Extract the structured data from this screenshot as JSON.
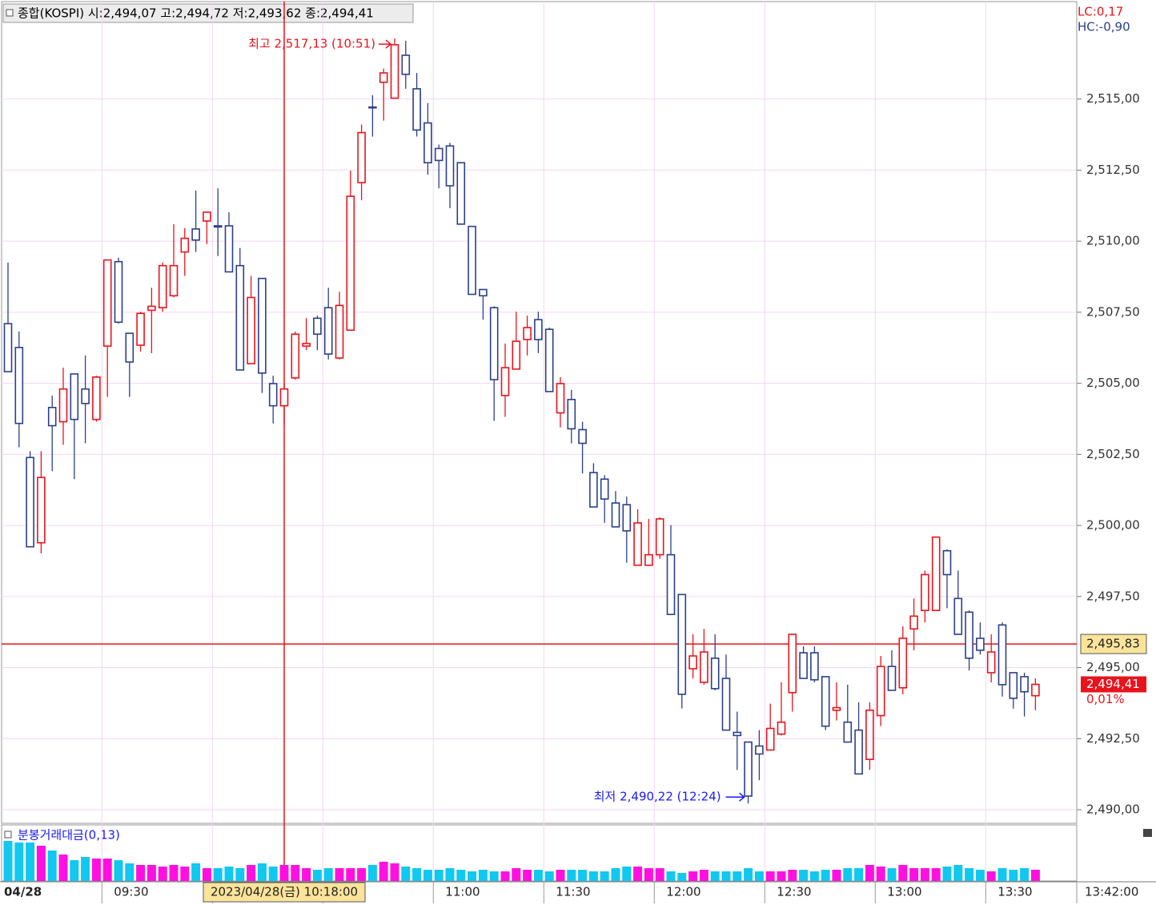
{
  "chart_data": {
    "type": "candlestick",
    "header": "종합(KOSPI) 시:2,494,07 고:2,494,72 저:2,493,62 종:2,494,41",
    "lc": "LC:0,17",
    "hc": "HC:-0,90",
    "categories": [
      "04/28",
      null,
      null,
      null,
      null,
      null,
      null,
      null,
      null,
      "09:30",
      null,
      null,
      null,
      null,
      null,
      null,
      null,
      null,
      null,
      null,
      null,
      null,
      null,
      null,
      null,
      null,
      null,
      null,
      null,
      null,
      null,
      null,
      null,
      null,
      null,
      null,
      null,
      null,
      null,
      "11:00",
      null,
      null,
      null,
      null,
      null,
      null,
      null,
      null,
      null,
      "11:30",
      null,
      null,
      null,
      null,
      null,
      null,
      null,
      null,
      null,
      "12:00",
      null,
      null,
      null,
      null,
      null,
      null,
      null,
      null,
      null,
      "12:30",
      null,
      null,
      null,
      null,
      null,
      null,
      null,
      null,
      null,
      "13:00",
      null,
      null,
      null,
      null,
      null,
      null,
      null,
      null,
      null,
      "13:30",
      null,
      null,
      null,
      null
    ],
    "x_end_label": "13:42:00",
    "crosshair_label": "2023/04/28(금) 10:18:00",
    "open": [
      2507.1,
      2506.26,
      2502.39,
      2499.39,
      2504.15,
      2503.65,
      2505.33,
      2504.8,
      2503.73,
      2506.31,
      2509.28,
      2506.76,
      2506.34,
      2507.57,
      2507.66,
      2508.08,
      2509.62,
      2510.43,
      2510.71,
      2510.54,
      2510.54,
      2509.14,
      2505.69,
      2508.69,
      2504.99,
      2504.21,
      2505.19,
      2506.31,
      2507.29,
      2507.66,
      2505.89,
      2506.87,
      2512.06,
      2514.72,
      2515.59,
      2515.03,
      2516.54,
      2515.36,
      2514.16,
      2513.26,
      2513.35,
      2512.76,
      2510.52,
      2508.3,
      2507.66,
      2504.57,
      2505.5,
      2506.54,
      2507.24,
      2506.9,
      2503.96,
      2504.43,
      2503.37,
      2501.86,
      2501.63,
      2500.79,
      2500.73,
      2498.6,
      2498.6,
      2498.97,
      2498.97,
      2497.57,
      2494.96,
      2494.48,
      2495.33,
      2494.62,
      2492.72,
      2492.38,
      2492.24,
      2492.1,
      2492.66,
      2494.12,
      2495.52,
      2495.52,
      2494.68,
      2493.5,
      2493.08,
      2492.8,
      2491.77,
      2493.31,
      2495.04,
      2494.29,
      2496.36,
      2497.01,
      2497.01,
      2499.11,
      2497.43,
      2496.95,
      2496.03,
      2494.82,
      2496.5,
      2494.82,
      2494.68,
      2494.01
    ],
    "high": [
      2509.25,
      2506.82,
      2502.61,
      2502.61,
      2504.57,
      2505.55,
      2505.33,
      2505.98,
      2505.27,
      2509.34,
      2509.42,
      2506.76,
      2507.52,
      2508.36,
      2509.25,
      2510.6,
      2510.46,
      2511.78,
      2511.02,
      2511.86,
      2511.02,
      2509.76,
      2508.78,
      2508.69,
      2505.27,
      2504.99,
      2506.82,
      2507.29,
      2507.38,
      2508.36,
      2508.22,
      2512.48,
      2514.1,
      2515.14,
      2516.07,
      2517.13,
      2517.05,
      2515.92,
      2514.86,
      2513.4,
      2513.46,
      2512.76,
      2510.52,
      2508.3,
      2507.71,
      2506.4,
      2507.52,
      2507.38,
      2507.52,
      2506.96,
      2505.22,
      2504.77,
      2503.65,
      2502.19,
      2501.77,
      2501.21,
      2501.01,
      2500.57,
      2500.23,
      2500.29,
      2500.01,
      2497.57,
      2496.17,
      2496.36,
      2496.17,
      2495.46,
      2493.45,
      2492.38,
      2492.8,
      2493.73,
      2494.48,
      2496.17,
      2495.75,
      2495.75,
      2494.68,
      2494.48,
      2494.4,
      2493.78,
      2493.78,
      2495.41,
      2495.61,
      2496.45,
      2497.43,
      2498.41,
      2499.61,
      2499.16,
      2498.41,
      2497.01,
      2496.59,
      2496.17,
      2496.59,
      2494.82,
      2494.82,
      2494.62
    ],
    "low": [
      2505.41,
      2502.75,
      2499.25,
      2499.02,
      2501.91,
      2502.84,
      2501.63,
      2502.89,
      2503.65,
      2504.52,
      2507.1,
      2504.52,
      2506.12,
      2506.06,
      2507.52,
      2508.02,
      2508.78,
      2509.62,
      2509.9,
      2509.48,
      2508.92,
      2505.47,
      2505.69,
      2504.66,
      2503.59,
      2503.54,
      2505.13,
      2506.17,
      2506.17,
      2505.84,
      2505.84,
      2506.87,
      2511.44,
      2513.68,
      2514.24,
      2515.03,
      2515.36,
      2513.68,
      2512.34,
      2511.86,
      2511.16,
      2510.6,
      2508.13,
      2507.24,
      2503.68,
      2503.82,
      2505.5,
      2505.98,
      2506.06,
      2504.71,
      2503.45,
      2502.89,
      2501.83,
      2500.65,
      2500.09,
      2499.95,
      2498.69,
      2498.6,
      2498.6,
      2498.83,
      2496.87,
      2493.56,
      2494.62,
      2494.4,
      2494.2,
      2492.8,
      2491.4,
      2490.22,
      2491.04,
      2492.1,
      2492.61,
      2493.45,
      2494.62,
      2494.48,
      2492.8,
      2493.14,
      2492.38,
      2491.26,
      2491.4,
      2492.94,
      2494.2,
      2494.06,
      2495.61,
      2496.59,
      2497.01,
      2497.09,
      2496.17,
      2494.9,
      2495.46,
      2494.48,
      2493.98,
      2493.56,
      2493.28,
      2493.5
    ],
    "close": [
      2505.41,
      2503.59,
      2499.25,
      2501.69,
      2503.51,
      2504.8,
      2503.73,
      2504.29,
      2505.22,
      2509.34,
      2507.15,
      2505.75,
      2507.46,
      2507.71,
      2509.14,
      2509.14,
      2510.1,
      2510.04,
      2511.02,
      2510.5,
      2508.92,
      2505.47,
      2508.02,
      2505.36,
      2504.21,
      2504.8,
      2506.73,
      2506.4,
      2506.73,
      2506.03,
      2507.74,
      2511.58,
      2513.82,
      2514.69,
      2515.92,
      2516.91,
      2515.87,
      2513.91,
      2512.76,
      2512.84,
      2511.95,
      2510.6,
      2508.13,
      2508.08,
      2505.13,
      2505.55,
      2506.48,
      2506.96,
      2506.54,
      2504.71,
      2504.99,
      2503.4,
      2502.89,
      2500.65,
      2500.93,
      2499.95,
      2499.81,
      2500.09,
      2498.97,
      2500.23,
      2496.87,
      2494.06,
      2495.41,
      2495.55,
      2494.26,
      2492.8,
      2492.61,
      2490.48,
      2491.96,
      2492.86,
      2493.08,
      2496.17,
      2494.62,
      2494.57,
      2492.94,
      2493.59,
      2492.38,
      2491.26,
      2493.5,
      2495.04,
      2494.2,
      2496.03,
      2496.81,
      2498.27,
      2499.59,
      2498.27,
      2496.17,
      2495.33,
      2495.61,
      2495.55,
      2494.4,
      2493.92,
      2494.15,
      2494.41
    ],
    "up_color": "#e8141c",
    "down_color": "#2b3f8c",
    "ylim": [
      2489.55,
      2518.4
    ],
    "yticks": [
      {
        "value": 2490,
        "label": "2,490,00"
      },
      {
        "value": 2492.5,
        "label": "2,492,50"
      },
      {
        "value": 2495,
        "label": "2,495,00"
      },
      {
        "value": 2497.5,
        "label": "2,497,50"
      },
      {
        "value": 2500,
        "label": "2,500,00"
      },
      {
        "value": 2502.5,
        "label": "2,502,50"
      },
      {
        "value": 2505,
        "label": "2,505,00"
      },
      {
        "value": 2507.5,
        "label": "2,507,50"
      },
      {
        "value": 2510,
        "label": "2,510,00"
      },
      {
        "value": 2512.5,
        "label": "2,512,50"
      },
      {
        "value": 2515,
        "label": "2,515,00"
      }
    ],
    "grid": true,
    "max_marker": {
      "value": 2517.13,
      "label": "최고 2,517,13 (10:51)"
    },
    "min_marker": {
      "value": 2490.22,
      "label": "최저 2,490,22 (12:24)"
    },
    "hline": {
      "value": 2495.83,
      "label": "2,495,83",
      "color": "#e8141c"
    },
    "last": {
      "value": 2494.41,
      "label": "2,494,41",
      "change": "0,01%"
    },
    "volume": {
      "label": "분봉거래대금(0,13)",
      "up_color": "#ff10e0",
      "down_color": "#10c8f0",
      "ylim": [
        0,
        70
      ],
      "values": [
        50,
        48,
        48,
        44,
        38,
        33,
        26,
        30,
        28,
        28,
        26,
        22,
        20,
        20,
        18,
        20,
        18,
        22,
        16,
        16,
        18,
        16,
        20,
        22,
        18,
        20,
        20,
        16,
        14,
        16,
        16,
        16,
        16,
        20,
        24,
        22,
        18,
        16,
        14,
        14,
        16,
        14,
        12,
        14,
        12,
        12,
        16,
        14,
        14,
        12,
        14,
        14,
        14,
        12,
        12,
        16,
        18,
        18,
        16,
        16,
        12,
        10,
        12,
        14,
        12,
        12,
        12,
        16,
        12,
        12,
        12,
        14,
        14,
        12,
        14,
        14,
        16,
        16,
        20,
        18,
        16,
        20,
        16,
        16,
        16,
        18,
        20,
        16,
        14,
        12,
        16,
        14,
        16,
        14
      ]
    }
  }
}
